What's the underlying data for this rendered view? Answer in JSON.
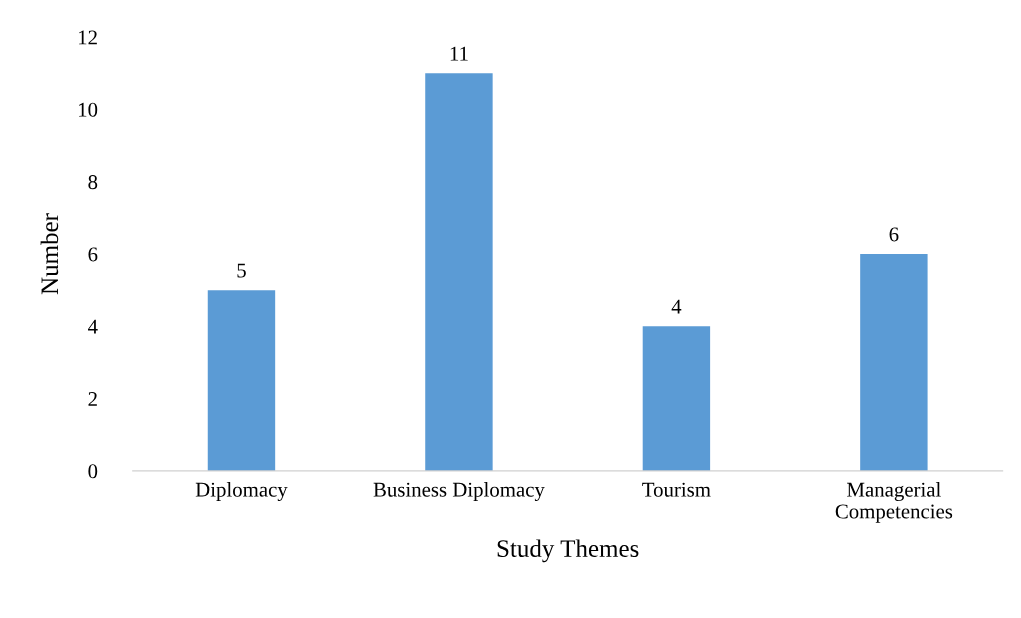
{
  "chart_data": {
    "type": "bar",
    "xlabel": "Study Themes",
    "ylabel": "Number",
    "categories": [
      "Diplomacy",
      "Business Diplomacy",
      "Tourism",
      "Managerial\nCompetencies"
    ],
    "values": [
      5,
      11,
      4,
      6
    ],
    "color": "#5b9bd5",
    "ylim": [
      0,
      12
    ],
    "yticks": [
      0,
      2,
      4,
      6,
      8,
      10,
      12
    ],
    "grid": false,
    "data_labels": true
  }
}
